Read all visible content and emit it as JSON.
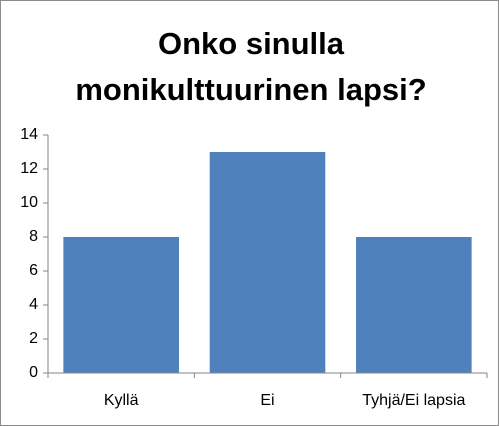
{
  "chart_data": {
    "type": "bar",
    "title": "Onko sinulla monikulttuurinen lapsi?",
    "categories": [
      "Kyllä",
      "Ei",
      "Tyhjä/Ei lapsia"
    ],
    "values": [
      8,
      13,
      8
    ],
    "color": "#4f81bd",
    "ylim": [
      0,
      14
    ],
    "yticks": [
      0,
      2,
      4,
      6,
      8,
      10,
      12,
      14
    ],
    "grid": false
  }
}
